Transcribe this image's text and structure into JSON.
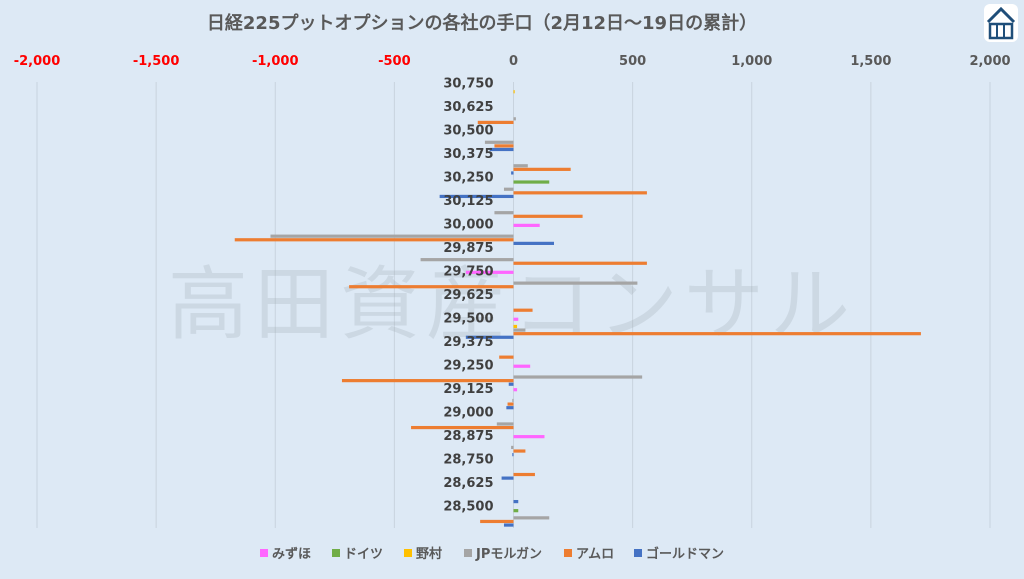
{
  "watermark": "高田資産コンサル",
  "logo_icon": "building-roof-logo-icon",
  "chart_data": {
    "type": "bar",
    "orientation": "horizontal",
    "title": "日経225プットオプションの各社の手口（2月12日〜19日の累計）",
    "xlim": [
      -2000,
      2000
    ],
    "xticks": [
      -2000,
      -1500,
      -1000,
      -500,
      0,
      500,
      1000,
      1500,
      2000
    ],
    "xtick_labels": [
      "-2,000",
      "-1,500",
      "-1,000",
      "-500",
      "0",
      "500",
      "1,000",
      "1,500",
      "2,000"
    ],
    "negative_tick_color": "#ff0000",
    "positive_tick_color": "#595959",
    "grid": "vertical",
    "legend_position": "bottom",
    "categories": [
      "30,750",
      "30,625",
      "30,500",
      "30,375",
      "30,250",
      "30,125",
      "30,000",
      "29,875",
      "29,750",
      "29,625",
      "29,500",
      "29,375",
      "29,250",
      "29,125",
      "29,000",
      "28,875",
      "28,750",
      "28,625",
      "28,500"
    ],
    "series": [
      {
        "name": "みずほ",
        "color": "#ff66ff",
        "values": [
          0,
          0,
          0,
          0,
          0,
          0,
          110,
          0,
          -200,
          0,
          20,
          0,
          70,
          15,
          0,
          130,
          0,
          0,
          0
        ]
      },
      {
        "name": "ドイツ",
        "color": "#70ad47",
        "values": [
          0,
          0,
          0,
          0,
          150,
          0,
          0,
          0,
          0,
          0,
          0,
          0,
          0,
          0,
          0,
          0,
          0,
          0,
          20
        ]
      },
      {
        "name": "野村",
        "color": "#ffc000",
        "values": [
          5,
          0,
          0,
          0,
          0,
          0,
          0,
          0,
          0,
          0,
          15,
          0,
          0,
          0,
          0,
          0,
          0,
          0,
          0
        ]
      },
      {
        "name": "JPモルガン",
        "color": "#a5a5a5",
        "values": [
          0,
          10,
          -120,
          60,
          -40,
          -80,
          -1020,
          -390,
          520,
          0,
          50,
          0,
          540,
          -5,
          -70,
          -10,
          0,
          0,
          150
        ]
      },
      {
        "name": "アムロ",
        "color": "#ed7d31",
        "values": [
          0,
          -150,
          -80,
          240,
          560,
          290,
          -1170,
          560,
          -690,
          80,
          1710,
          -60,
          -720,
          -25,
          -430,
          50,
          90,
          0,
          -140
        ]
      },
      {
        "name": "ゴールドマン",
        "color": "#4472c4",
        "values": [
          0,
          0,
          -100,
          -10,
          -310,
          0,
          170,
          0,
          0,
          0,
          -200,
          0,
          -20,
          -30,
          0,
          -5,
          -50,
          20,
          -40
        ]
      }
    ]
  }
}
